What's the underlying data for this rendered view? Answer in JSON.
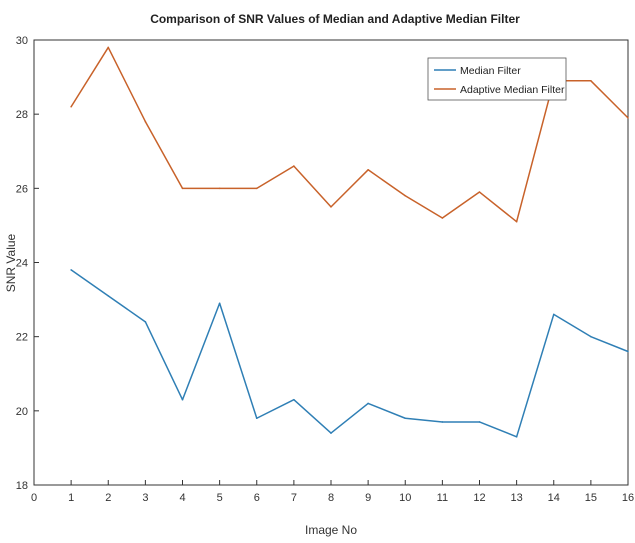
{
  "chart_data": {
    "type": "line",
    "title": "Comparison of SNR Values of Median and Adaptive Median Filter",
    "xlabel": "Image No",
    "ylabel": "SNR Value",
    "xlim": [
      0,
      16
    ],
    "ylim": [
      18,
      30
    ],
    "x_ticks": [
      0,
      1,
      2,
      3,
      4,
      5,
      6,
      7,
      8,
      9,
      10,
      11,
      12,
      13,
      14,
      15,
      16
    ],
    "y_ticks": [
      18,
      20,
      22,
      24,
      26,
      28,
      30
    ],
    "x": [
      1,
      2,
      3,
      4,
      5,
      6,
      7,
      8,
      9,
      10,
      11,
      12,
      13,
      14,
      15,
      16
    ],
    "series": [
      {
        "name": "Median Filter",
        "color": "#2f7fb5",
        "values": [
          23.8,
          23.1,
          22.4,
          20.3,
          22.9,
          19.8,
          20.3,
          19.4,
          20.2,
          19.8,
          19.7,
          19.7,
          19.3,
          22.6,
          22.0,
          21.6
        ]
      },
      {
        "name": "Adaptive Median Filter",
        "color": "#c8622a",
        "values": [
          28.2,
          29.8,
          27.8,
          26.0,
          26.0,
          26.0,
          26.6,
          25.5,
          26.5,
          25.8,
          25.2,
          25.9,
          25.1,
          28.9,
          28.9,
          27.9
        ]
      }
    ],
    "grid": false,
    "legend_position": "top-right"
  }
}
